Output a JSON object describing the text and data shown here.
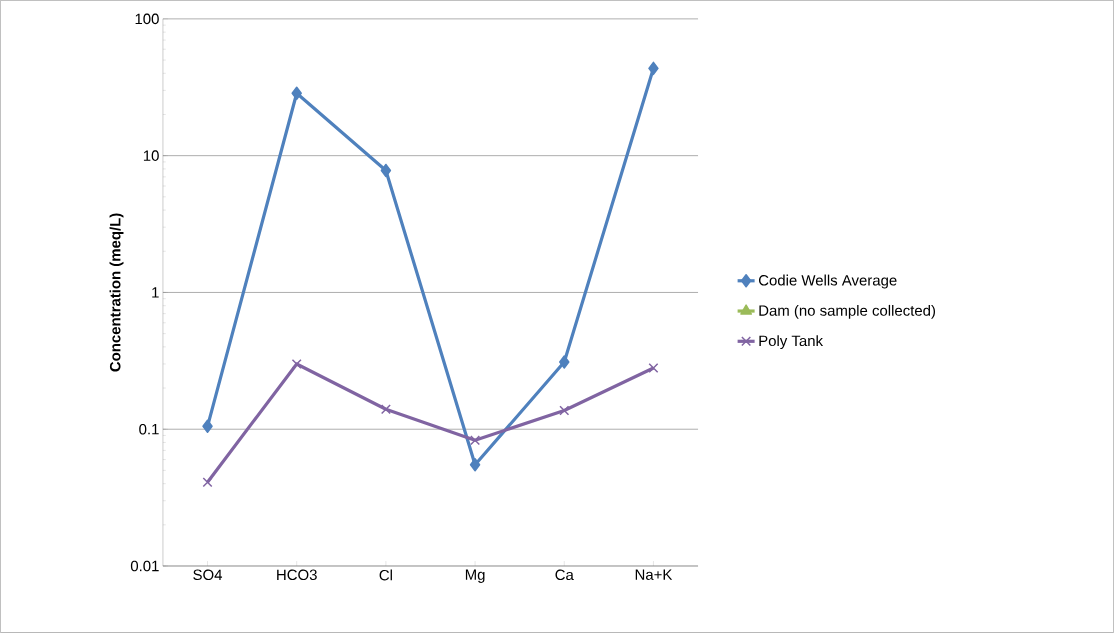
{
  "chart_data": {
    "type": "line",
    "ylabel": "Concentration (meq/L)",
    "categories": [
      "SO4",
      "HCO3",
      "Cl",
      "Mg",
      "Ca",
      "Na+K"
    ],
    "series": [
      {
        "name": "Codie Wells Average",
        "color": "#4f81bd",
        "marker": "diamond",
        "values": [
          0.105,
          28.6,
          7.8,
          0.055,
          0.31,
          43.5
        ]
      },
      {
        "name": "Dam (no sample collected)",
        "color": "#9bbb59",
        "marker": "triangle",
        "values": [
          null,
          null,
          null,
          null,
          null,
          null
        ]
      },
      {
        "name": "Poly Tank",
        "color": "#8064a2",
        "marker": "cross",
        "values": [
          0.041,
          0.3,
          0.14,
          0.083,
          0.137,
          0.28
        ]
      }
    ],
    "log": "y",
    "ylim": [
      0.01,
      100
    ],
    "yticks": [
      0.01,
      0.1,
      1,
      10,
      100
    ],
    "grid": "y",
    "legend": "right",
    "line_style": "solid"
  }
}
